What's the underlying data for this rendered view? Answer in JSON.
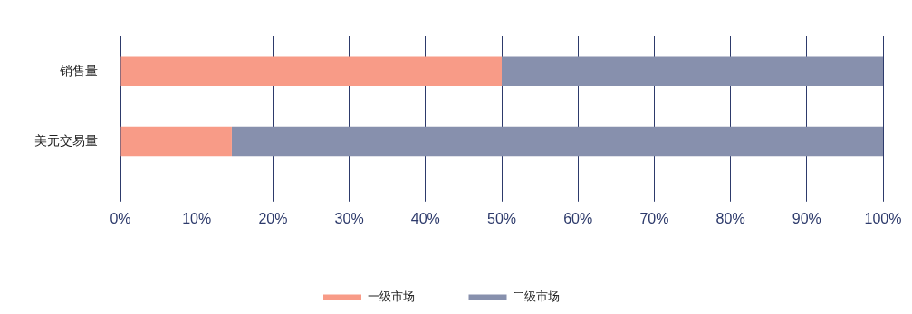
{
  "chart_data": {
    "type": "bar",
    "orientation": "horizontal",
    "stacked": true,
    "categories": [
      "销售量",
      "美元交易量"
    ],
    "series": [
      {
        "name": "一级市场",
        "color": "#f89b87",
        "values": [
          50,
          14.6
        ]
      },
      {
        "name": "二级市场",
        "color": "#8790ad",
        "values": [
          50,
          85.4
        ]
      }
    ],
    "xlim": [
      0,
      100
    ],
    "xticks": [
      {
        "value": 0,
        "label": "0%"
      },
      {
        "value": 10,
        "label": "10%"
      },
      {
        "value": 20,
        "label": "20%"
      },
      {
        "value": 30,
        "label": "30%"
      },
      {
        "value": 40,
        "label": "40%"
      },
      {
        "value": 50,
        "label": "50%"
      },
      {
        "value": 60,
        "label": "60%"
      },
      {
        "value": 70,
        "label": "70%"
      },
      {
        "value": 80,
        "label": "80%"
      },
      {
        "value": 90,
        "label": "90%"
      },
      {
        "value": 100,
        "label": "100%"
      }
    ],
    "grid": "x",
    "legend": "bottom"
  }
}
